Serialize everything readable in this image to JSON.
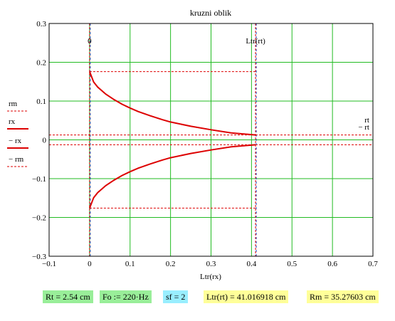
{
  "chart_data": {
    "type": "line",
    "title": "kruzni oblik",
    "xlabel": "Ltr(rx)",
    "ylabel": "",
    "xlim": [
      -0.1,
      0.7
    ],
    "ylim": [
      -0.3,
      0.3
    ],
    "xticks": [
      "−0.1",
      "0",
      "0.1",
      "0.2",
      "0.3",
      "0.4",
      "0.5",
      "0.6",
      "0.7"
    ],
    "yticks": [
      "0.3",
      "0.2",
      "0.1",
      "0",
      "−0.1",
      "−0.2",
      "−0.3"
    ],
    "grid": true,
    "legend_position": "left",
    "legend": [
      "rm",
      "rx",
      "− rx",
      "− rm"
    ],
    "right_labels": [
      "rt",
      "− rt"
    ],
    "top_labels": [
      "0",
      "Ltr(rt)"
    ],
    "series": [
      {
        "name": "rx",
        "color": "#dd0000",
        "style": "solid",
        "x": [
          0,
          0.01,
          0.02,
          0.04,
          0.06,
          0.08,
          0.1,
          0.12,
          0.15,
          0.18,
          0.2,
          0.25,
          0.3,
          0.35,
          0.41
        ],
        "y": [
          0.176,
          0.149,
          0.136,
          0.118,
          0.104,
          0.092,
          0.082,
          0.073,
          0.062,
          0.052,
          0.046,
          0.035,
          0.026,
          0.018,
          0.0127
        ]
      },
      {
        "name": "− rx",
        "color": "#dd0000",
        "style": "solid",
        "x": [
          0,
          0.01,
          0.02,
          0.04,
          0.06,
          0.08,
          0.1,
          0.12,
          0.15,
          0.18,
          0.2,
          0.25,
          0.3,
          0.35,
          0.41
        ],
        "y": [
          -0.176,
          -0.149,
          -0.136,
          -0.118,
          -0.104,
          -0.092,
          -0.082,
          -0.073,
          -0.062,
          -0.052,
          -0.046,
          -0.035,
          -0.026,
          -0.018,
          -0.0127
        ]
      },
      {
        "name": "rm",
        "color": "#dd0000",
        "style": "dashed",
        "x": [
          0,
          0.41
        ],
        "y": [
          0.176,
          0.176
        ]
      },
      {
        "name": "− rm",
        "color": "#dd0000",
        "style": "dashed",
        "x": [
          0,
          0.41
        ],
        "y": [
          -0.176,
          -0.176
        ]
      },
      {
        "name": "rt",
        "color": "#dd0000",
        "style": "dashed",
        "x": [
          -0.1,
          0.7
        ],
        "y": [
          0.0127,
          0.0127
        ]
      },
      {
        "name": "− rt",
        "color": "#dd0000",
        "style": "dashed",
        "x": [
          -0.1,
          0.7
        ],
        "y": [
          -0.0127,
          -0.0127
        ]
      }
    ],
    "vertical_markers": [
      {
        "label": "0",
        "x": 0
      },
      {
        "label": "Ltr(rt)",
        "x": 0.41
      }
    ]
  },
  "fields": [
    {
      "id": "rt",
      "text": "Rt = 2.54 cm",
      "bg": "#99ee99"
    },
    {
      "id": "fo",
      "text": "Fo := 220·Hz",
      "bg": "#99ee99"
    },
    {
      "id": "sf",
      "text": "sf = 2",
      "bg": "#99eeff"
    },
    {
      "id": "ltr",
      "text": "Ltr(rt) = 41.016918 cm",
      "bg": "#ffff99"
    },
    {
      "id": "rm",
      "text": "Rm = 35.27603 cm",
      "bg": "#ffff99"
    }
  ]
}
